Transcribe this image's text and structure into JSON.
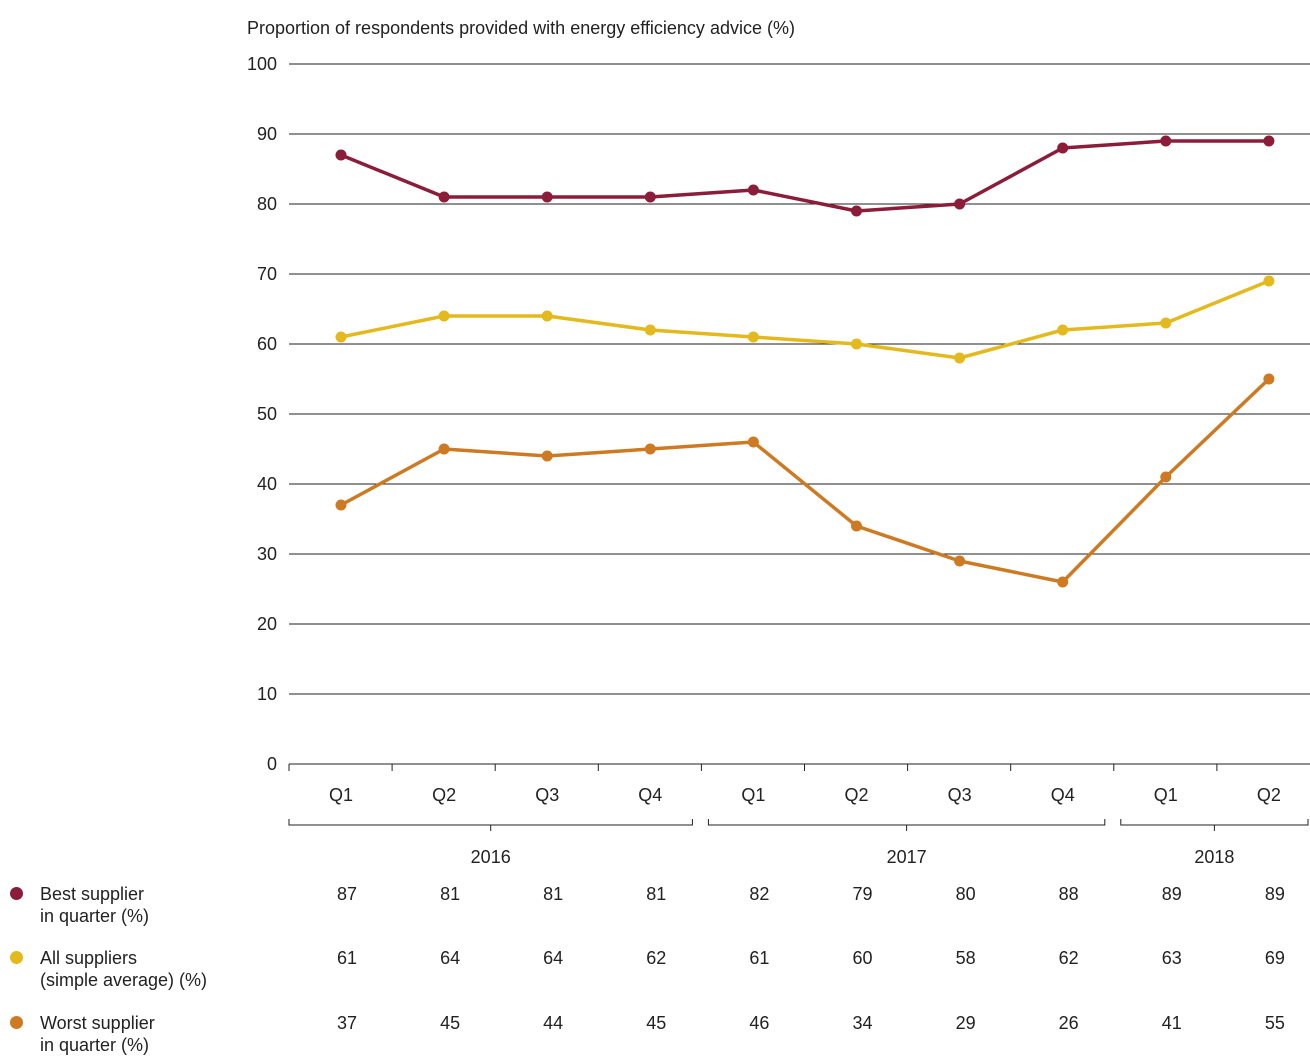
{
  "chart_data": {
    "type": "line",
    "title": "Proportion of respondents provided with energy efficiency advice (%)",
    "categories": [
      "Q1",
      "Q2",
      "Q3",
      "Q4",
      "Q1",
      "Q2",
      "Q3",
      "Q4",
      "Q1",
      "Q2"
    ],
    "year_groups": [
      {
        "label": "2016",
        "start": 0,
        "end": 3
      },
      {
        "label": "2017",
        "start": 4,
        "end": 7
      },
      {
        "label": "2018",
        "start": 8,
        "end": 9
      }
    ],
    "ylim": [
      0,
      100
    ],
    "yticks": [
      0,
      10,
      20,
      30,
      40,
      50,
      60,
      70,
      80,
      90,
      100
    ],
    "grid": true,
    "series": [
      {
        "name_line1": "Best supplier",
        "name_line2": "in quarter (%)",
        "color": "#8b1c3a",
        "values": [
          87,
          81,
          81,
          81,
          82,
          79,
          80,
          88,
          89,
          89
        ]
      },
      {
        "name_line1": "All suppliers",
        "name_line2": "(simple average) (%)",
        "color": "#e3b91d",
        "values": [
          61,
          64,
          64,
          62,
          61,
          60,
          58,
          62,
          63,
          69
        ]
      },
      {
        "name_line1": "Worst supplier",
        "name_line2": "in quarter (%)",
        "color": "#cd7a22",
        "values": [
          37,
          45,
          44,
          45,
          46,
          34,
          29,
          26,
          41,
          55
        ]
      }
    ]
  }
}
